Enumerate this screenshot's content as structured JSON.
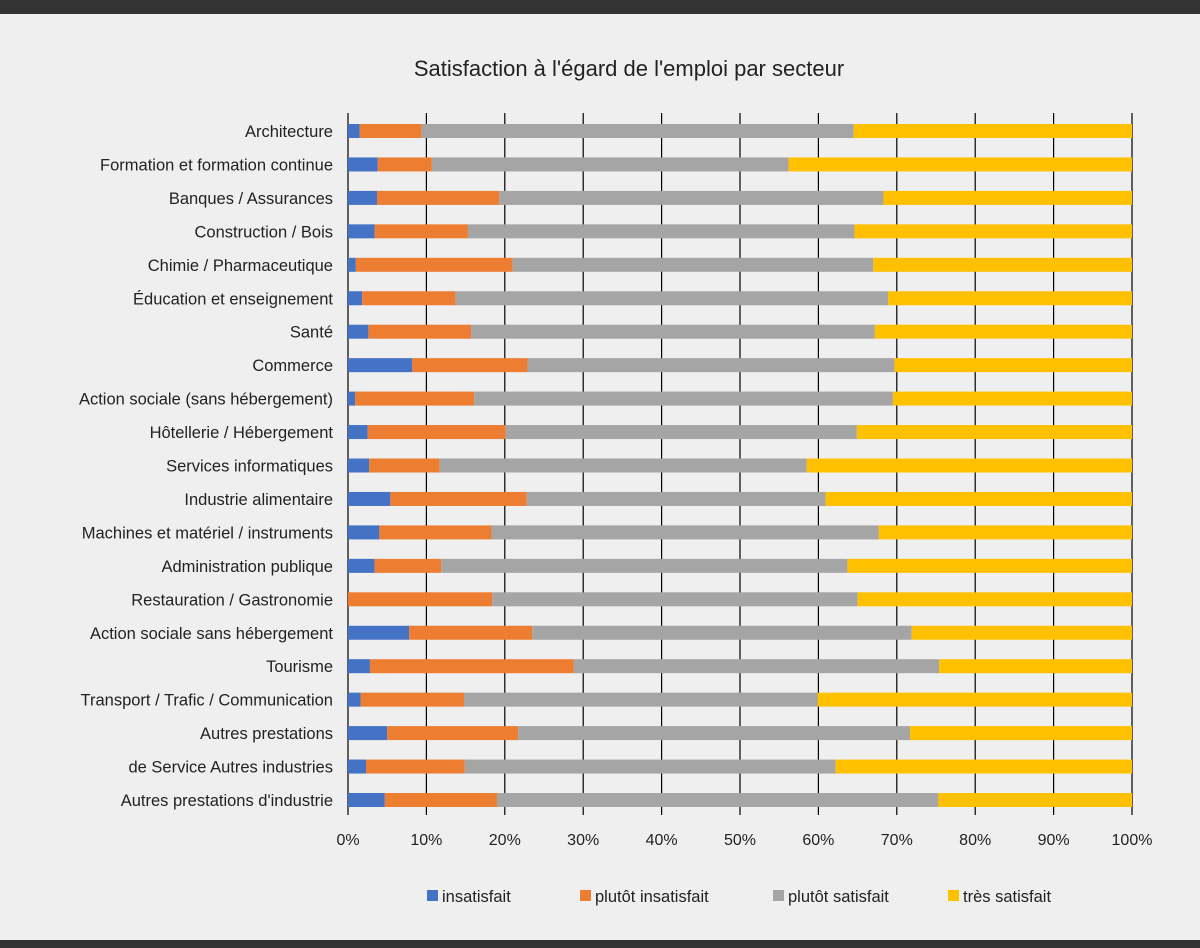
{
  "chart_data": {
    "type": "bar",
    "orientation": "horizontal",
    "stacked": "percent",
    "title": "Satisfaction à l'égard de l'emploi par secteur",
    "xlabel": "",
    "ylabel": "",
    "xlim": [
      0,
      100
    ],
    "x_ticks": [
      "0%",
      "10%",
      "20%",
      "30%",
      "40%",
      "50%",
      "60%",
      "70%",
      "80%",
      "90%",
      "100%"
    ],
    "grid": "vertical",
    "legend_position": "bottom",
    "categories": [
      "Architecture",
      "Formation et formation continue",
      "Banques / Assurances",
      "Construction / Bois",
      "Chimie / Pharmaceutique",
      "Éducation et enseignement",
      "Santé",
      "Commerce",
      "Action sociale (sans hébergement)",
      "Hôtellerie / Hébergement",
      "Services informatiques",
      "Industrie alimentaire",
      "Machines et matériel / instruments",
      "Administration publique",
      "Restauration / Gastronomie",
      "Action sociale sans hébergement",
      "Tourisme",
      "Transport / Trafic / Communication",
      "Autres prestations",
      "de Service Autres industries",
      "Autres prestations d'industrie"
    ],
    "series": [
      {
        "name": "insatisfait",
        "color": "#4472c4",
        "values": [
          1.5,
          3.8,
          3.7,
          3.4,
          1.0,
          1.8,
          2.6,
          8.2,
          0.9,
          2.5,
          2.7,
          5.4,
          4.0,
          3.4,
          0.0,
          7.8,
          2.8,
          1.6,
          5.0,
          2.3,
          4.7
        ]
      },
      {
        "name": "plutôt insatisfait",
        "color": "#ed7d31",
        "values": [
          7.9,
          6.9,
          15.6,
          11.9,
          20.0,
          11.9,
          13.1,
          14.7,
          15.2,
          17.6,
          9.0,
          17.4,
          14.3,
          8.5,
          18.4,
          15.7,
          26.0,
          13.2,
          16.7,
          12.6,
          14.3
        ]
      },
      {
        "name": "plutôt satisfait",
        "color": "#a5a5a5",
        "values": [
          55.1,
          45.5,
          49.0,
          49.3,
          46.0,
          55.2,
          51.5,
          46.8,
          53.4,
          44.8,
          46.8,
          38.1,
          49.4,
          51.8,
          46.6,
          48.4,
          46.6,
          45.1,
          50.0,
          47.3,
          56.3
        ]
      },
      {
        "name": "très satisfait",
        "color": "#ffc000",
        "values": [
          35.5,
          43.8,
          31.7,
          35.4,
          33.0,
          31.1,
          32.8,
          30.3,
          30.5,
          35.1,
          41.5,
          39.1,
          32.3,
          36.3,
          35.0,
          28.1,
          24.6,
          40.1,
          28.3,
          37.8,
          24.7
        ]
      }
    ]
  }
}
